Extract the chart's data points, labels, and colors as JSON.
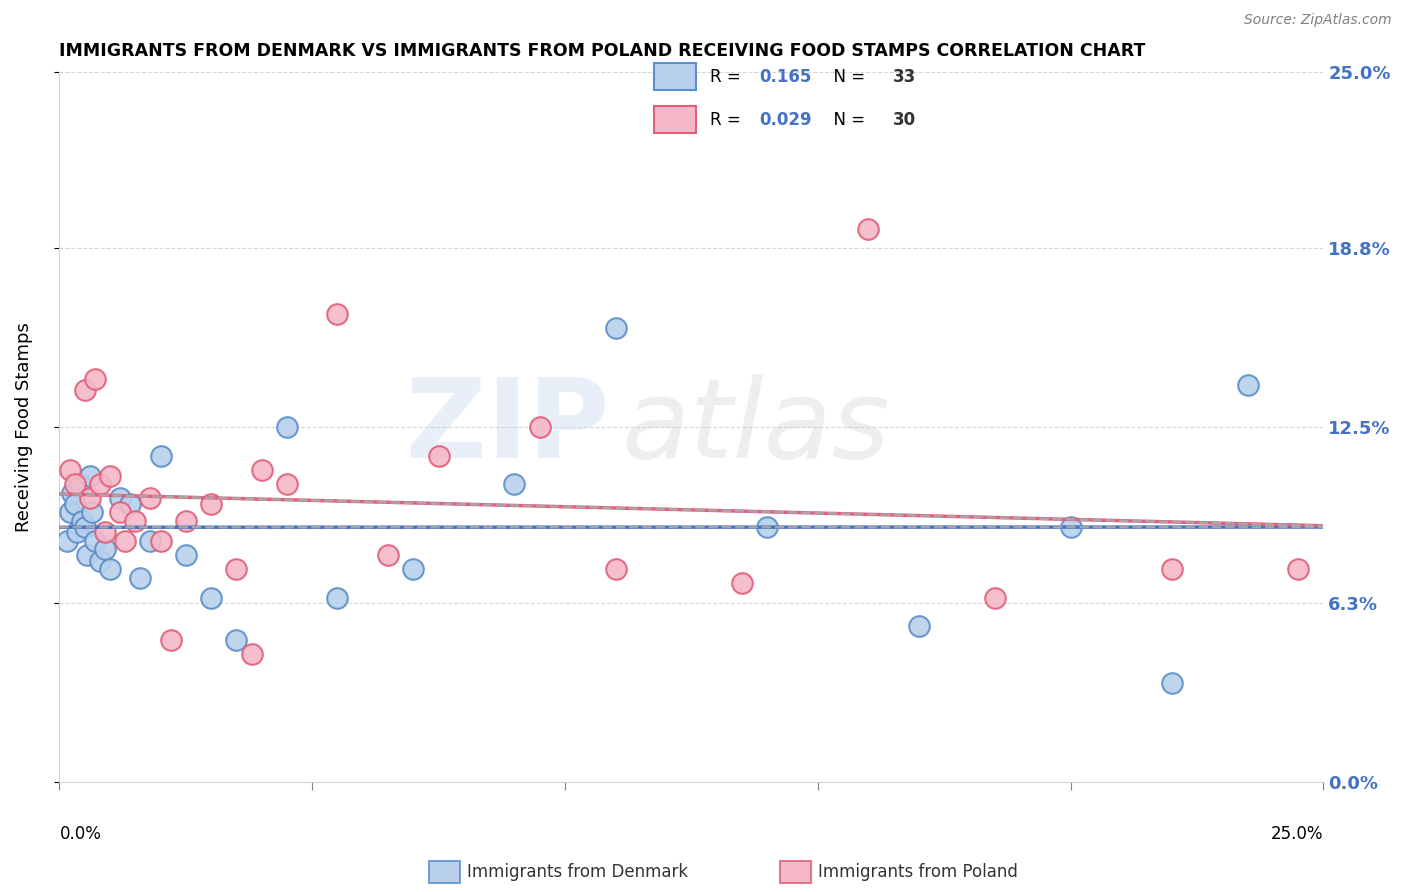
{
  "title": "IMMIGRANTS FROM DENMARK VS IMMIGRANTS FROM POLAND RECEIVING FOOD STAMPS CORRELATION CHART",
  "source": "Source: ZipAtlas.com",
  "ylabel": "Receiving Food Stamps",
  "ytick_labels": [
    "0.0%",
    "6.3%",
    "12.5%",
    "18.8%",
    "25.0%"
  ],
  "ytick_values": [
    0.0,
    6.3,
    12.5,
    18.8,
    25.0
  ],
  "xrange": [
    0.0,
    25.0
  ],
  "yrange": [
    0.0,
    25.0
  ],
  "legend1_r": "0.165",
  "legend1_n": "33",
  "legend2_r": "0.029",
  "legend2_n": "30",
  "legend_label1": "Immigrants from Denmark",
  "legend_label2": "Immigrants from Poland",
  "color_denmark_fill": "#b8d0ec",
  "color_denmark_edge": "#5b8fc9",
  "color_poland_fill": "#f5b8c8",
  "color_poland_edge": "#e0607a",
  "color_denmark_line": "#4472c4",
  "color_poland_line": "#e06080",
  "color_dashed": "#aaaaaa",
  "denmark_x": [
    0.15,
    0.2,
    0.25,
    0.3,
    0.35,
    0.4,
    0.45,
    0.5,
    0.55,
    0.6,
    0.65,
    0.7,
    0.8,
    0.9,
    1.0,
    1.2,
    1.4,
    1.6,
    1.8,
    2.0,
    2.5,
    3.0,
    3.5,
    4.5,
    5.5,
    7.0,
    9.0,
    11.0,
    14.0,
    17.0,
    20.0,
    22.0,
    23.5
  ],
  "denmark_y": [
    8.5,
    9.5,
    10.2,
    9.8,
    8.8,
    10.5,
    9.2,
    9.0,
    8.0,
    10.8,
    9.5,
    8.5,
    7.8,
    8.2,
    7.5,
    10.0,
    9.8,
    7.2,
    8.5,
    11.5,
    8.0,
    6.5,
    5.0,
    12.5,
    6.5,
    7.5,
    10.5,
    16.0,
    9.0,
    5.5,
    9.0,
    3.5,
    14.0
  ],
  "poland_x": [
    0.2,
    0.3,
    0.5,
    0.6,
    0.7,
    0.8,
    1.0,
    1.2,
    1.5,
    1.8,
    2.0,
    2.5,
    3.0,
    3.5,
    4.0,
    4.5,
    5.5,
    6.5,
    7.5,
    9.5,
    11.0,
    13.5,
    16.0,
    18.5,
    22.0,
    24.5,
    2.2,
    3.8,
    1.3,
    0.9
  ],
  "poland_y": [
    11.0,
    10.5,
    13.8,
    10.0,
    14.2,
    10.5,
    10.8,
    9.5,
    9.2,
    10.0,
    8.5,
    9.2,
    9.8,
    7.5,
    11.0,
    10.5,
    16.5,
    8.0,
    11.5,
    12.5,
    7.5,
    7.0,
    19.5,
    6.5,
    7.5,
    7.5,
    5.0,
    4.5,
    8.5,
    8.8
  ]
}
